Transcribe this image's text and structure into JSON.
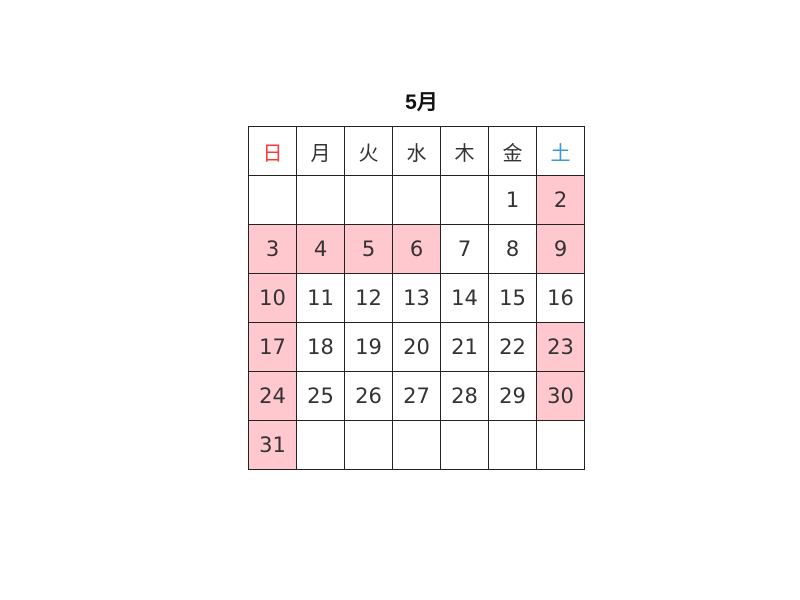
{
  "calendar": {
    "title": "5月",
    "weekdays": [
      "日",
      "月",
      "火",
      "水",
      "木",
      "金",
      "土"
    ],
    "colors": {
      "sunday": "#ff3838",
      "saturday": "#3a9ad9",
      "highlight": "#ffc7ce",
      "text": "#333333"
    },
    "weeks": [
      [
        {
          "day": ""
        },
        {
          "day": ""
        },
        {
          "day": ""
        },
        {
          "day": ""
        },
        {
          "day": ""
        },
        {
          "day": "1"
        },
        {
          "day": "2",
          "highlighted": true
        }
      ],
      [
        {
          "day": "3",
          "highlighted": true
        },
        {
          "day": "4",
          "highlighted": true
        },
        {
          "day": "5",
          "highlighted": true
        },
        {
          "day": "6",
          "highlighted": true
        },
        {
          "day": "7"
        },
        {
          "day": "8"
        },
        {
          "day": "9",
          "highlighted": true
        }
      ],
      [
        {
          "day": "10",
          "highlighted": true
        },
        {
          "day": "11"
        },
        {
          "day": "12"
        },
        {
          "day": "13"
        },
        {
          "day": "14"
        },
        {
          "day": "15"
        },
        {
          "day": "16"
        }
      ],
      [
        {
          "day": "17",
          "highlighted": true
        },
        {
          "day": "18"
        },
        {
          "day": "19"
        },
        {
          "day": "20"
        },
        {
          "day": "21"
        },
        {
          "day": "22"
        },
        {
          "day": "23",
          "highlighted": true
        }
      ],
      [
        {
          "day": "24",
          "highlighted": true
        },
        {
          "day": "25"
        },
        {
          "day": "26"
        },
        {
          "day": "27"
        },
        {
          "day": "28"
        },
        {
          "day": "29"
        },
        {
          "day": "30",
          "highlighted": true
        }
      ],
      [
        {
          "day": "31",
          "highlighted": true
        },
        {
          "day": ""
        },
        {
          "day": ""
        },
        {
          "day": ""
        },
        {
          "day": ""
        },
        {
          "day": ""
        },
        {
          "day": ""
        }
      ]
    ]
  }
}
